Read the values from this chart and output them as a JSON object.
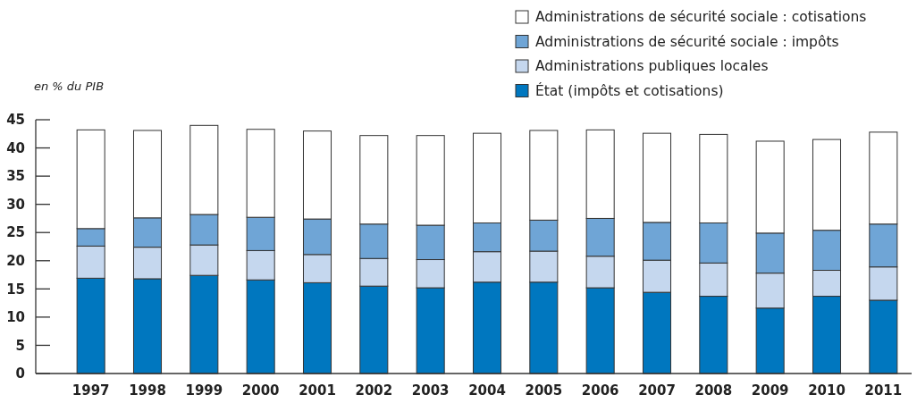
{
  "chart_data": {
    "type": "bar",
    "stacked": true,
    "ylabel": "en % du PIB",
    "categories": [
      "1997",
      "1998",
      "1999",
      "2000",
      "2001",
      "2002",
      "2003",
      "2004",
      "2005",
      "2006",
      "2007",
      "2008",
      "2009",
      "2010",
      "2011"
    ],
    "series": [
      {
        "name": "État (impôts et cotisations)",
        "color": "#0077bf",
        "values": [
          16.9,
          16.8,
          17.4,
          16.6,
          16.1,
          15.5,
          15.2,
          16.2,
          16.2,
          15.2,
          14.4,
          13.7,
          11.6,
          13.7,
          13.0
        ]
      },
      {
        "name": "Administrations publiques locales",
        "color": "#c5d7ee",
        "values": [
          5.7,
          5.6,
          5.4,
          5.2,
          5.0,
          4.9,
          5.0,
          5.4,
          5.5,
          5.6,
          5.7,
          5.9,
          6.2,
          4.6,
          5.9
        ]
      },
      {
        "name": "Administrations de sécurité sociale : impôts",
        "color": "#6fa5d6",
        "values": [
          3.1,
          5.2,
          5.4,
          5.9,
          6.3,
          6.1,
          6.1,
          5.1,
          5.5,
          6.7,
          6.7,
          7.1,
          7.1,
          7.1,
          7.6
        ]
      },
      {
        "name": "Administrations de sécurité sociale : cotisations",
        "color": "#ffffff",
        "values": [
          17.5,
          15.5,
          15.8,
          15.6,
          15.6,
          15.7,
          15.9,
          15.9,
          15.9,
          15.7,
          15.8,
          15.7,
          16.3,
          16.1,
          16.3
        ]
      }
    ],
    "ylim": [
      0,
      45
    ],
    "yticks": [
      0,
      5,
      10,
      15,
      20,
      25,
      30,
      35,
      40,
      45
    ],
    "grid": false,
    "legend": "top right"
  }
}
